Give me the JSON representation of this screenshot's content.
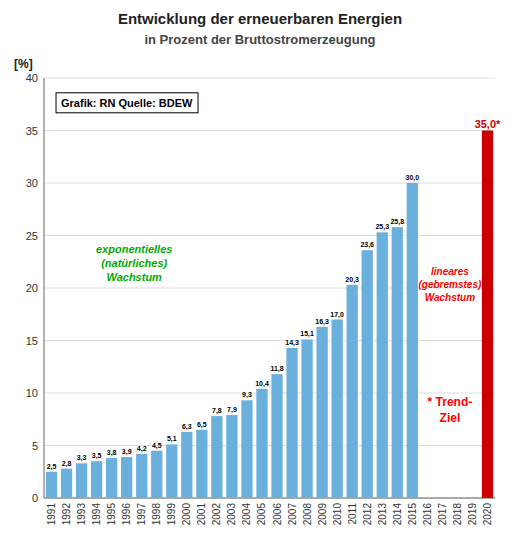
{
  "chart_data": {
    "type": "bar",
    "title": "Entwicklung der erneuerbaren Energien",
    "subtitle": "in Prozent der Bruttostromerzeugung",
    "y_label": "[%]",
    "categories": [
      "1991",
      "1992",
      "1993",
      "1994",
      "1995",
      "1996",
      "1997",
      "1998",
      "1999",
      "2000",
      "2001",
      "2002",
      "2003",
      "2004",
      "2005",
      "2006",
      "2007",
      "2008",
      "2009",
      "2010",
      "2011",
      "2012",
      "2013",
      "2014",
      "2015",
      "2016",
      "2017",
      "2018",
      "2019",
      "2020"
    ],
    "values": [
      2.5,
      2.8,
      3.3,
      3.5,
      3.8,
      3.9,
      4.2,
      4.5,
      5.1,
      6.3,
      6.5,
      7.8,
      7.9,
      9.3,
      10.4,
      11.8,
      14.3,
      15.1,
      16.3,
      17.0,
      20.3,
      23.6,
      25.3,
      25.8,
      30.0,
      null,
      null,
      null,
      null,
      35.0
    ],
    "value_labels": [
      "2,5",
      "2,8",
      "3,3",
      "3,5",
      "3,8",
      "3,9",
      "4,2",
      "4,5",
      "5,1",
      "6,3",
      "6,5",
      "7,8",
      "7,9",
      "9,3",
      "10,4",
      "11,8",
      "14,3",
      "15,1",
      "16,3",
      "17,0",
      "20,3",
      "23,6",
      "25,3",
      "25,8",
      "30,0",
      null,
      null,
      null,
      null,
      "35,0*"
    ],
    "colors": [
      "#6ab0dc",
      "#6ab0dc",
      "#6ab0dc",
      "#6ab0dc",
      "#6ab0dc",
      "#6ab0dc",
      "#6ab0dc",
      "#6ab0dc",
      "#6ab0dc",
      "#6ab0dc",
      "#6ab0dc",
      "#6ab0dc",
      "#6ab0dc",
      "#6ab0dc",
      "#6ab0dc",
      "#6ab0dc",
      "#6ab0dc",
      "#6ab0dc",
      "#6ab0dc",
      "#6ab0dc",
      "#6ab0dc",
      "#6ab0dc",
      "#6ab0dc",
      "#6ab0dc",
      "#6ab0dc",
      "#6ab0dc",
      "#6ab0dc",
      "#6ab0dc",
      "#6ab0dc",
      "#cc0000"
    ],
    "data_labels": true,
    "ylim": [
      0,
      40
    ],
    "yticks": [
      0,
      5,
      10,
      15,
      20,
      25,
      30,
      35,
      40
    ],
    "grid": true,
    "annotations": [
      {
        "text": "Grafik: RN    Quelle: BDEW",
        "color": "#000000"
      },
      {
        "text": "exponentielles\n(natürliches)\nWachstum",
        "color": "#00aa00"
      },
      {
        "text": "lineares\n(gebremstes)\nWachstum",
        "color": "#ff0000"
      },
      {
        "text": "* Trend-\nZiel",
        "color": "#ff0000"
      }
    ]
  }
}
